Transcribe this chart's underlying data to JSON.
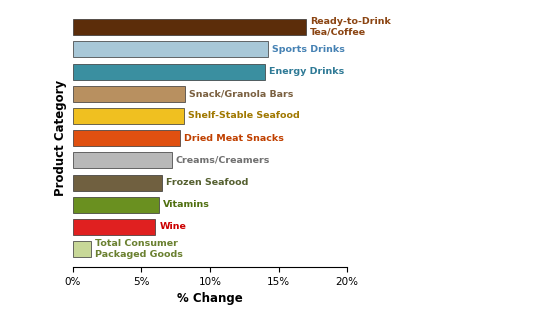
{
  "categories": [
    "Ready-to-Drink\nTea/Coffee",
    "Sports Drinks",
    "Energy Drinks",
    "Snack/Granola Bars",
    "Shelf-Stable Seafood",
    "Dried Meat Snacks",
    "Creams/Creamers",
    "Frozen Seafood",
    "Vitamins",
    "Wine",
    "Total Consumer\nPackaged Goods"
  ],
  "values": [
    17.0,
    14.2,
    14.0,
    8.2,
    8.1,
    7.8,
    7.2,
    6.5,
    6.3,
    6.0,
    1.3
  ],
  "colors": [
    "#5C2D0A",
    "#A8C8D8",
    "#3A8FA0",
    "#B89060",
    "#F0C020",
    "#E05010",
    "#B8B8B8",
    "#706040",
    "#6A9020",
    "#E02020",
    "#C8D898"
  ],
  "label_colors": [
    "#8B4513",
    "#4682B4",
    "#2F7A96",
    "#7A6040",
    "#A07800",
    "#C04000",
    "#707070",
    "#556030",
    "#507010",
    "#CC0000",
    "#6A8030"
  ],
  "xlabel": "% Change",
  "ylabel": "Product Category",
  "xlim": [
    0,
    20
  ],
  "xticks": [
    0,
    5,
    10,
    15,
    20
  ],
  "xticklabels": [
    "0%",
    "5%",
    "10%",
    "15%",
    "20%"
  ],
  "bar_height": 0.72,
  "label_fontsize": 6.8,
  "axis_label_fontsize": 8.5,
  "tick_fontsize": 7.5
}
